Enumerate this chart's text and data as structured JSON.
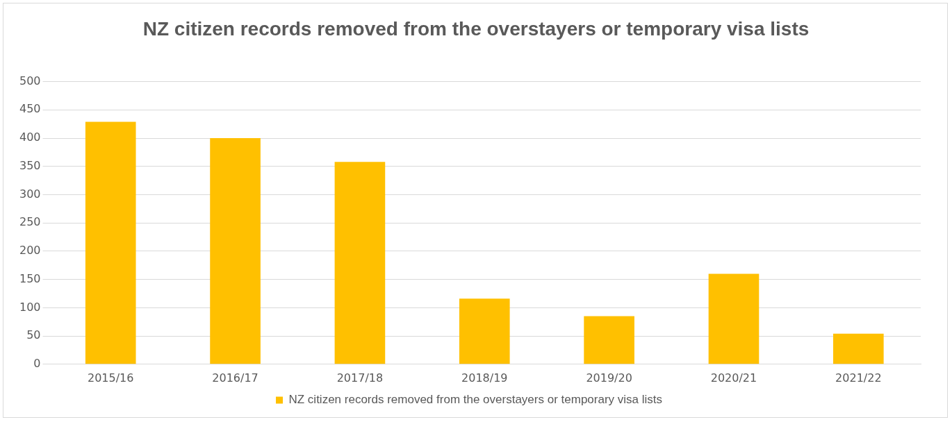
{
  "chart_data": {
    "type": "bar",
    "title": "NZ citizen records removed from the overstayers or temporary visa lists",
    "categories": [
      "2015/16",
      "2016/17",
      "2017/18",
      "2018/19",
      "2019/20",
      "2020/21",
      "2021/22"
    ],
    "series": [
      {
        "name": "NZ citizen records removed from the overstayers or temporary visa lists",
        "color": "#ffc000",
        "values": [
          429,
          400,
          358,
          116,
          85,
          160,
          54
        ]
      }
    ],
    "ylim": [
      0,
      500
    ],
    "yticks": [
      0,
      50,
      100,
      150,
      200,
      250,
      300,
      350,
      400,
      450,
      500
    ],
    "grid": "y",
    "legend": "bottom"
  }
}
